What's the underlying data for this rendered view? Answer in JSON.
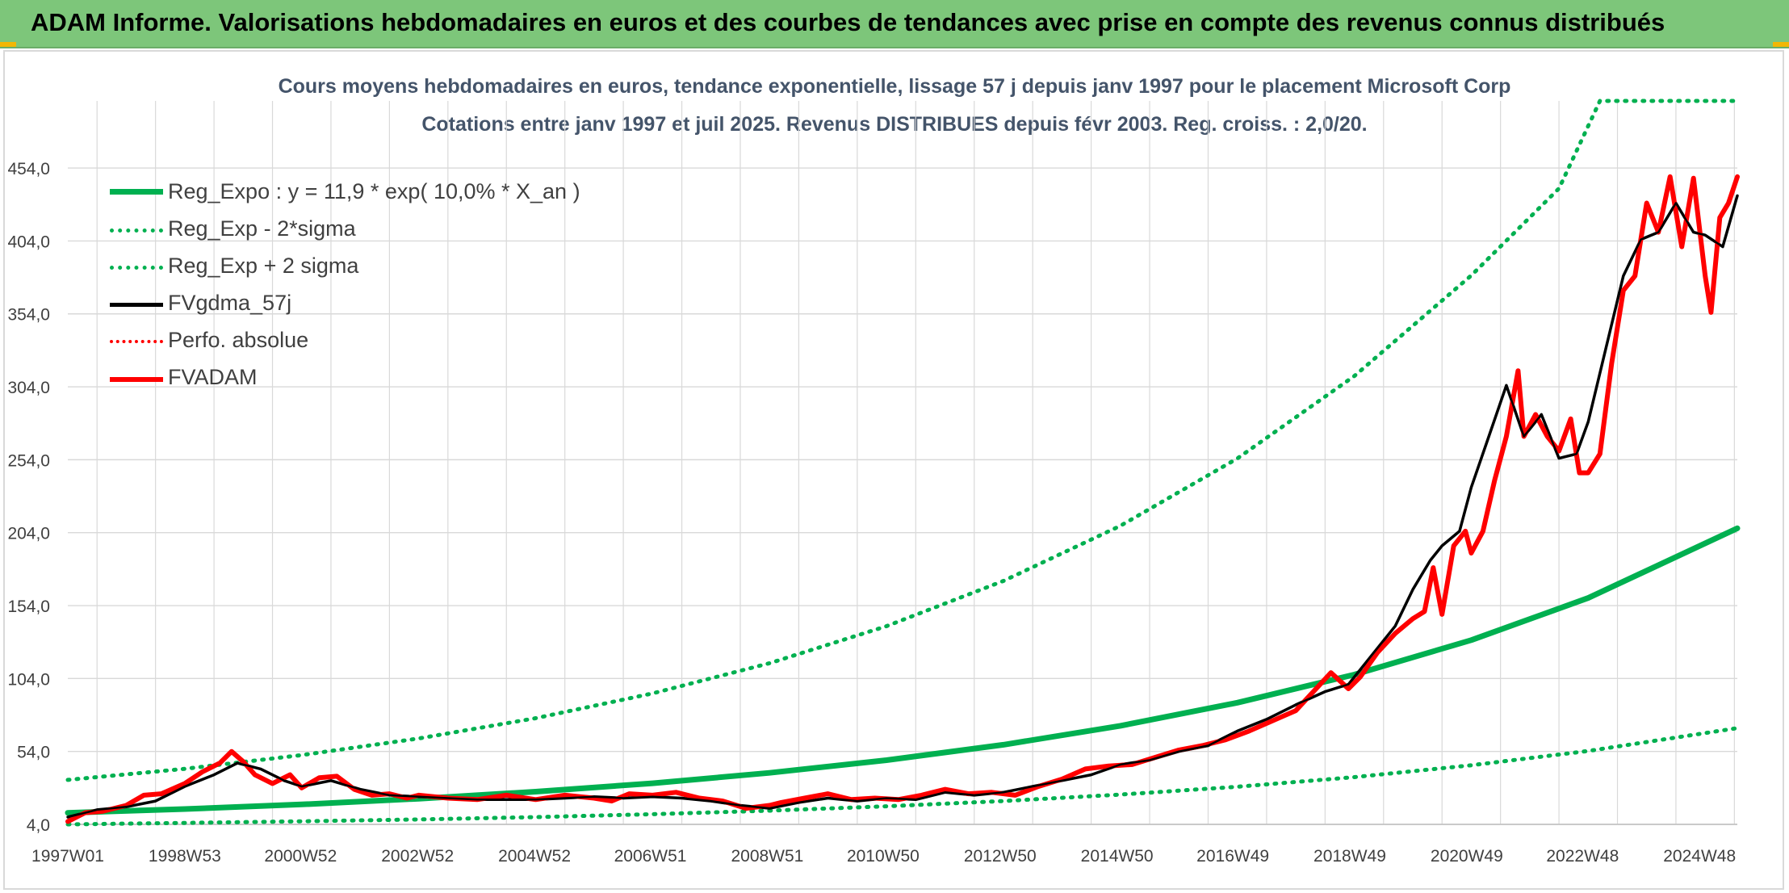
{
  "header": {
    "title": "ADAM Informe. Valorisations hebdomadaires en euros et des courbes de tendances avec prise en compte des revenus connus distribués"
  },
  "colors": {
    "banner": "#7dc67a",
    "regression": "#00b050",
    "smoothed": "#000000",
    "price": "#ff0000",
    "title_text": "#44546a",
    "grid": "#d9d9d9"
  },
  "chart_data": {
    "type": "line",
    "title": "Cours moyens hebdomadaires en euros, tendance exponentielle, lissage 57 j depuis janv 1997 pour le placement Microsoft Corp",
    "subtitle": "Cotations entre janv 1997 et juil 2025. Revenus DISTRIBUES depuis févr 2003. Reg. croiss. : 2,0/20.",
    "xlabel": "",
    "ylabel": "",
    "x_ticks": [
      "1997W01",
      "1998W53",
      "2000W52",
      "2002W52",
      "2004W52",
      "2006W51",
      "2008W51",
      "2010W50",
      "2012W50",
      "2014W50",
      "2016W49",
      "2018W49",
      "2020W49",
      "2022W48",
      "2024W48"
    ],
    "y_ticks": [
      "4,0",
      "54,0",
      "104,0",
      "154,0",
      "204,0",
      "254,0",
      "304,0",
      "354,0",
      "404,0",
      "454,0"
    ],
    "ylim": [
      4,
      500
    ],
    "xlim": [
      1997.0,
      2025.55
    ],
    "grid": true,
    "legend_position": "top-left",
    "series": [
      {
        "name": "Reg_Expo : y = 11,9 * exp( 10,0% *  X_an )",
        "style": "solid",
        "color": "#00b050",
        "x": [
          1997,
          1999,
          2001,
          2003,
          2005,
          2007,
          2009,
          2011,
          2013,
          2015,
          2017,
          2019,
          2021,
          2023,
          2025.55
        ],
        "y": [
          11.9,
          14.5,
          17.7,
          21.6,
          26.4,
          32.2,
          39.3,
          48.0,
          58.6,
          71.6,
          87.4,
          106.7,
          130.3,
          159.2,
          207.0
        ]
      },
      {
        "name": "Reg_Exp - 2*sigma",
        "style": "dotted",
        "color": "#00b050",
        "x": [
          1997,
          1999,
          2001,
          2003,
          2005,
          2007,
          2009,
          2011,
          2013,
          2015,
          2017,
          2019,
          2021,
          2023,
          2025.55
        ],
        "y": [
          4.0,
          5.0,
          6.1,
          7.4,
          9.0,
          11.0,
          13.4,
          16.4,
          20.0,
          24.4,
          29.8,
          36.4,
          44.5,
          54.3,
          70.0
        ]
      },
      {
        "name": "Reg_Exp + 2 sigma",
        "style": "dotted",
        "color": "#00b050",
        "x": [
          1997,
          1999,
          2001,
          2003,
          2005,
          2007,
          2009,
          2011,
          2013,
          2015,
          2017,
          2019,
          2021,
          2022.5,
          2023.2,
          2025.55
        ],
        "y": [
          34.5,
          42.1,
          51.5,
          62.9,
          76.8,
          93.8,
          114.5,
          139.9,
          170.9,
          208.7,
          254.9,
          311.4,
          380.3,
          440,
          500,
          500
        ]
      },
      {
        "name": "FVgdma_57j",
        "style": "solid-thin",
        "color": "#000000",
        "x": [
          1997.0,
          1997.5,
          1998.0,
          1998.5,
          1999.0,
          1999.5,
          1999.9,
          2000.3,
          2000.7,
          2001.0,
          2001.5,
          2002.0,
          2002.5,
          2003.0,
          2004.0,
          2005.0,
          2006.0,
          2006.5,
          2007.0,
          2007.5,
          2008.0,
          2008.5,
          2009.0,
          2009.5,
          2010.0,
          2010.5,
          2011.0,
          2011.5,
          2012.0,
          2012.5,
          2013.0,
          2013.5,
          2014.0,
          2014.5,
          2015.0,
          2015.5,
          2016.0,
          2016.5,
          2017.0,
          2017.5,
          2018.0,
          2018.5,
          2018.9,
          2019.3,
          2019.7,
          2020.0,
          2020.3,
          2020.5,
          2020.8,
          2021.0,
          2021.3,
          2021.6,
          2021.9,
          2022.2,
          2022.5,
          2022.8,
          2023.0,
          2023.3,
          2023.6,
          2023.9,
          2024.2,
          2024.5,
          2024.8,
          2025.0,
          2025.3,
          2025.55
        ],
        "y": [
          9,
          14,
          16,
          20,
          30,
          38,
          46,
          42,
          34,
          30,
          34,
          28,
          24,
          23,
          21,
          21,
          23,
          22,
          23,
          22,
          20,
          17,
          15,
          19,
          22,
          20,
          22,
          21,
          26,
          24,
          26,
          30,
          34,
          38,
          45,
          48,
          54,
          58,
          68,
          76,
          86,
          95,
          100,
          120,
          140,
          165,
          185,
          195,
          205,
          235,
          270,
          305,
          270,
          285,
          255,
          258,
          280,
          330,
          380,
          405,
          410,
          430,
          410,
          408,
          400,
          435
        ]
      },
      {
        "name": "Perfo. absolue",
        "style": "dotted",
        "color": "#ff0000",
        "x": [],
        "y": []
      },
      {
        "name": "FVADAM",
        "style": "solid",
        "color": "#ff0000",
        "x": [
          1997.0,
          1997.3,
          1997.6,
          1998.0,
          1998.3,
          1998.6,
          1999.0,
          1999.3,
          1999.6,
          1999.8,
          2000.0,
          2000.2,
          2000.5,
          2000.8,
          2001.0,
          2001.3,
          2001.6,
          2001.9,
          2002.2,
          2002.5,
          2002.8,
          2003.0,
          2003.5,
          2004.0,
          2004.5,
          2005.0,
          2005.5,
          2006.0,
          2006.3,
          2006.6,
          2007.0,
          2007.4,
          2007.8,
          2008.2,
          2008.6,
          2009.0,
          2009.2,
          2009.6,
          2010.0,
          2010.4,
          2010.8,
          2011.2,
          2011.6,
          2012.0,
          2012.4,
          2012.8,
          2013.2,
          2013.6,
          2014.0,
          2014.4,
          2014.8,
          2015.2,
          2015.6,
          2016.0,
          2016.4,
          2016.8,
          2017.2,
          2017.6,
          2018.0,
          2018.3,
          2018.6,
          2018.9,
          2019.1,
          2019.4,
          2019.7,
          2020.0,
          2020.2,
          2020.35,
          2020.5,
          2020.7,
          2020.9,
          2021.0,
          2021.2,
          2021.4,
          2021.6,
          2021.8,
          2021.9,
          2022.1,
          2022.3,
          2022.5,
          2022.7,
          2022.85,
          2023.0,
          2023.2,
          2023.4,
          2023.6,
          2023.8,
          2024.0,
          2024.2,
          2024.4,
          2024.6,
          2024.8,
          2025.0,
          2025.1,
          2025.25,
          2025.4,
          2025.55
        ],
        "y": [
          6,
          12,
          13,
          17,
          24,
          25,
          32,
          40,
          46,
          54,
          47,
          38,
          32,
          38,
          29,
          36,
          37,
          28,
          24,
          25,
          22,
          24,
          22,
          21,
          24,
          21,
          24,
          22,
          20,
          25,
          24,
          26,
          22,
          20,
          15,
          17,
          19,
          22,
          25,
          21,
          22,
          21,
          24,
          28,
          25,
          26,
          24,
          30,
          35,
          42,
          44,
          45,
          50,
          55,
          58,
          62,
          68,
          75,
          82,
          95,
          108,
          97,
          105,
          122,
          135,
          145,
          150,
          180,
          148,
          195,
          205,
          190,
          205,
          240,
          270,
          315,
          270,
          285,
          270,
          260,
          282,
          245,
          245,
          258,
          320,
          370,
          380,
          430,
          410,
          448,
          400,
          447,
          380,
          355,
          420,
          430,
          448
        ]
      }
    ]
  }
}
